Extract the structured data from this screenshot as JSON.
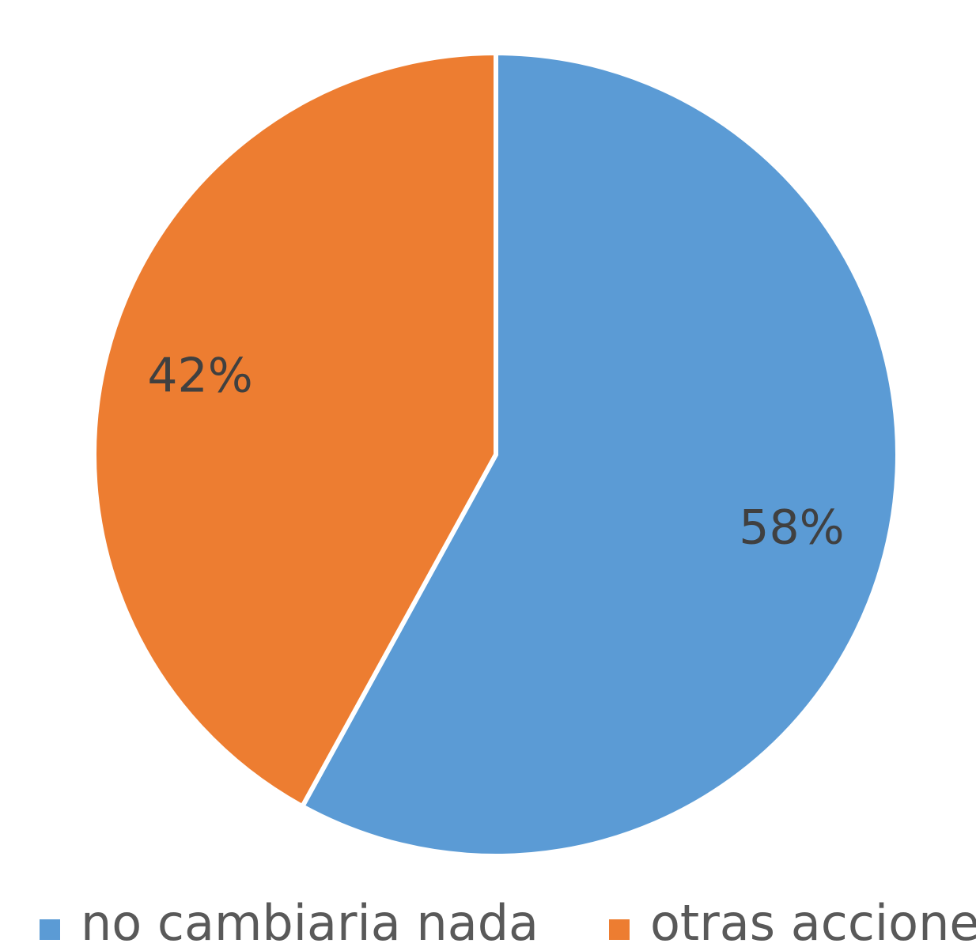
{
  "chart_data": {
    "type": "pie",
    "categories": [
      "no cambiaria nada",
      "otras acciones"
    ],
    "values": [
      58,
      42
    ],
    "value_labels": [
      "58%",
      "42%"
    ],
    "colors": [
      "#5b9bd5",
      "#ed7d31"
    ],
    "legend": "bottom"
  }
}
